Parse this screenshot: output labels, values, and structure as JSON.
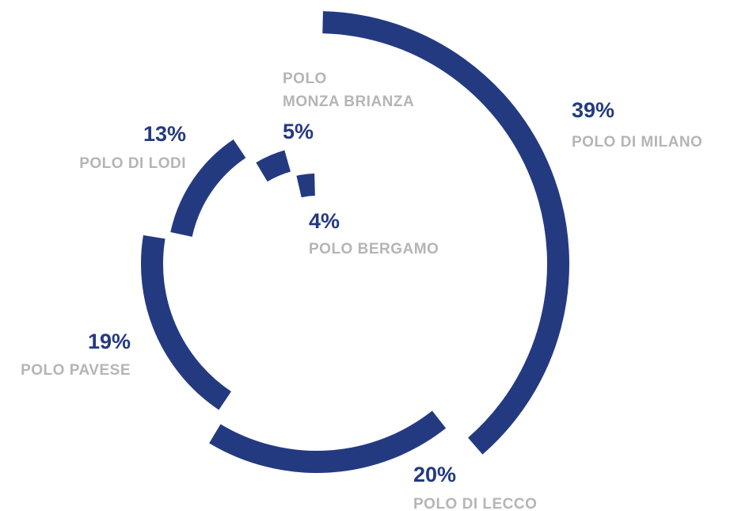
{
  "chart_data": {
    "type": "pie",
    "categories": [
      "POLO DI MILANO",
      "POLO DI LECCO",
      "POLO PAVESE",
      "POLO DI LODI",
      "POLO\nMONZA BRIANZA",
      "POLO BERGAMO"
    ],
    "values": [
      39,
      20,
      19,
      13,
      5,
      4
    ],
    "value_labels": [
      "39%",
      "20%",
      "19%",
      "13%",
      "5%",
      "4%"
    ],
    "color": "#243a80",
    "label_color": "#b5b5b5"
  }
}
